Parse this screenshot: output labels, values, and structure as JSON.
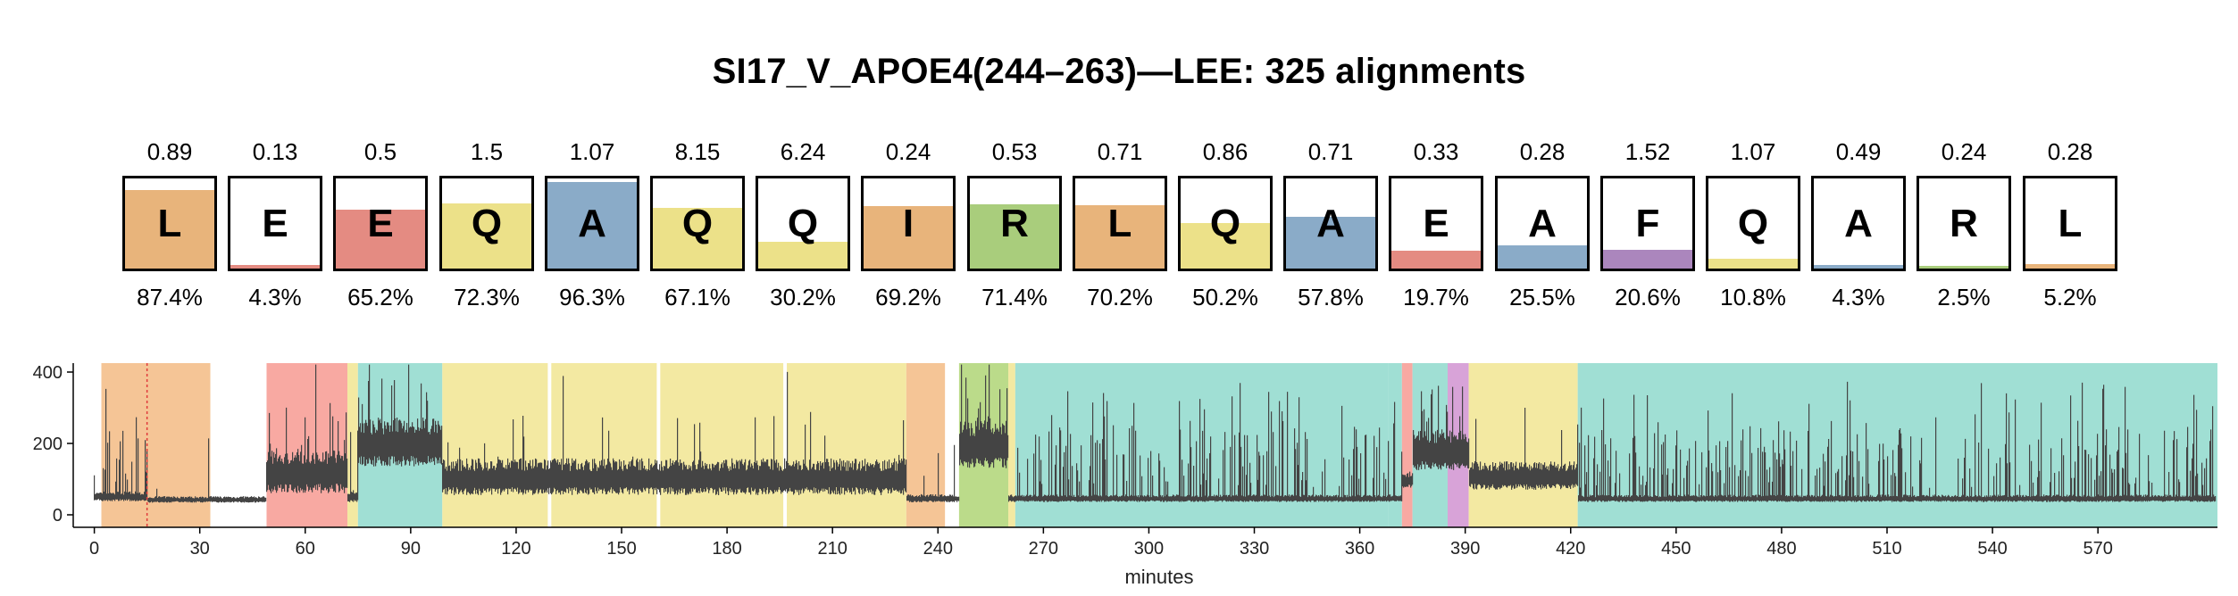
{
  "title": "SI17_V_APOE4(244–263)—LEE: 325 alignments",
  "colors": {
    "A": "#8aabc8",
    "Q": "#ece189",
    "L": "#e8b47b",
    "I": "#e8b47b",
    "E": "#e48b82",
    "R": "#a9cd7c",
    "F": "#ab86bd",
    "bg_orange": "#f5c596",
    "bg_red": "#f8a9a2",
    "bg_teal": "#a0dfd4",
    "bg_yellow": "#f3e9a2",
    "bg_green": "#bbdb8a",
    "bg_purple": "#d8a3d8",
    "trace": "#444444"
  },
  "residues": [
    {
      "letter": "L",
      "score": "0.89",
      "percent": "87.4%",
      "fraction": 0.874
    },
    {
      "letter": "E",
      "score": "0.13",
      "percent": "4.3%",
      "fraction": 0.043
    },
    {
      "letter": "E",
      "score": "0.5",
      "percent": "65.2%",
      "fraction": 0.652
    },
    {
      "letter": "Q",
      "score": "1.5",
      "percent": "72.3%",
      "fraction": 0.723
    },
    {
      "letter": "A",
      "score": "1.07",
      "percent": "96.3%",
      "fraction": 0.963
    },
    {
      "letter": "Q",
      "score": "8.15",
      "percent": "67.1%",
      "fraction": 0.671
    },
    {
      "letter": "Q",
      "score": "6.24",
      "percent": "30.2%",
      "fraction": 0.302
    },
    {
      "letter": "I",
      "score": "0.24",
      "percent": "69.2%",
      "fraction": 0.692
    },
    {
      "letter": "R",
      "score": "0.53",
      "percent": "71.4%",
      "fraction": 0.714
    },
    {
      "letter": "L",
      "score": "0.71",
      "percent": "70.2%",
      "fraction": 0.702
    },
    {
      "letter": "Q",
      "score": "0.86",
      "percent": "50.2%",
      "fraction": 0.502
    },
    {
      "letter": "A",
      "score": "0.71",
      "percent": "57.8%",
      "fraction": 0.578
    },
    {
      "letter": "E",
      "score": "0.33",
      "percent": "19.7%",
      "fraction": 0.197
    },
    {
      "letter": "A",
      "score": "0.28",
      "percent": "25.5%",
      "fraction": 0.255
    },
    {
      "letter": "F",
      "score": "1.52",
      "percent": "20.6%",
      "fraction": 0.206
    },
    {
      "letter": "Q",
      "score": "1.07",
      "percent": "10.8%",
      "fraction": 0.108
    },
    {
      "letter": "A",
      "score": "0.49",
      "percent": "4.3%",
      "fraction": 0.043
    },
    {
      "letter": "R",
      "score": "0.24",
      "percent": "2.5%",
      "fraction": 0.025
    },
    {
      "letter": "L",
      "score": "0.28",
      "percent": "5.2%",
      "fraction": 0.052
    }
  ],
  "chart_data": {
    "type": "line",
    "xlabel": "minutes",
    "ylabel": "",
    "xlim": [
      -6,
      604
    ],
    "ylim": [
      -35,
      425
    ],
    "xticks": [
      0,
      30,
      60,
      90,
      120,
      150,
      180,
      210,
      240,
      270,
      300,
      330,
      360,
      390,
      420,
      450,
      480,
      510,
      540,
      570
    ],
    "yticks": [
      0,
      200,
      400
    ],
    "grid": false,
    "baseline_level": 45,
    "regions": [
      {
        "start": 2,
        "end": 33,
        "color": "orange"
      },
      {
        "start": 49,
        "end": 72,
        "color": "red"
      },
      {
        "start": 72,
        "end": 75,
        "color": "yellow"
      },
      {
        "start": 75,
        "end": 99,
        "color": "teal"
      },
      {
        "start": 99,
        "end": 129,
        "color": "yellow"
      },
      {
        "start": 130,
        "end": 160,
        "color": "yellow"
      },
      {
        "start": 161,
        "end": 196,
        "color": "yellow"
      },
      {
        "start": 197,
        "end": 231,
        "color": "yellow"
      },
      {
        "start": 231,
        "end": 242,
        "color": "orange"
      },
      {
        "start": 246,
        "end": 260,
        "color": "green"
      },
      {
        "start": 260,
        "end": 262,
        "color": "yellow"
      },
      {
        "start": 262,
        "end": 368,
        "color": "teal"
      },
      {
        "start": 368,
        "end": 372,
        "color": "teal"
      },
      {
        "start": 372,
        "end": 375,
        "color": "red"
      },
      {
        "start": 375,
        "end": 385,
        "color": "teal"
      },
      {
        "start": 385,
        "end": 391,
        "color": "purple"
      },
      {
        "start": 391,
        "end": 422,
        "color": "yellow"
      },
      {
        "start": 422,
        "end": 604,
        "color": "teal"
      }
    ],
    "segments": [
      {
        "start": 0,
        "end": 2,
        "level": 50,
        "spread": 10,
        "spikes": 0
      },
      {
        "start": 2,
        "end": 15,
        "level": 50,
        "spread": 12,
        "spikes": 0.25
      },
      {
        "start": 15,
        "end": 49,
        "level": 42,
        "spread": 8,
        "spikes": 0.02
      },
      {
        "start": 49,
        "end": 72,
        "level": 115,
        "spread": 55,
        "spikes": 0.08
      },
      {
        "start": 72,
        "end": 75,
        "level": 50,
        "spread": 15,
        "spikes": 0.05
      },
      {
        "start": 75,
        "end": 99,
        "level": 195,
        "spread": 60,
        "spikes": 0.18
      },
      {
        "start": 99,
        "end": 231,
        "level": 100,
        "spread": 45,
        "spikes": 0.06
      },
      {
        "start": 231,
        "end": 246,
        "level": 45,
        "spread": 10,
        "spikes": 0.04
      },
      {
        "start": 246,
        "end": 260,
        "level": 190,
        "spread": 60,
        "spikes": 0.25
      },
      {
        "start": 260,
        "end": 372,
        "level": 45,
        "spread": 9,
        "spikes": 0.35
      },
      {
        "start": 372,
        "end": 375,
        "level": 95,
        "spread": 20,
        "spikes": 0.1
      },
      {
        "start": 375,
        "end": 391,
        "level": 175,
        "spread": 50,
        "spikes": 0.2
      },
      {
        "start": 391,
        "end": 422,
        "level": 105,
        "spread": 35,
        "spikes": 0.1
      },
      {
        "start": 422,
        "end": 604,
        "level": 45,
        "spread": 9,
        "spikes": 0.35
      }
    ],
    "vertical_marker": {
      "x": 15,
      "color": "#e03c3c",
      "style": "dotted"
    }
  }
}
